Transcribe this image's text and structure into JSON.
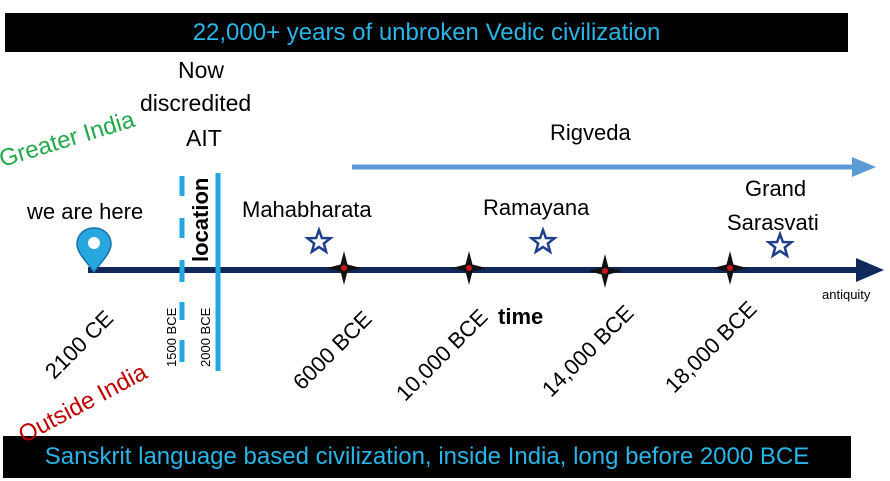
{
  "colors": {
    "banner_bg": "#000000",
    "banner_text": "#2bb4e6",
    "timeline": "#10295a",
    "rigveda_arrow": "#5b9bd5",
    "location_bar": "#26a7e0",
    "greater_india": "#22a84a",
    "outside_india": "#c00000",
    "star_outline": "#1f3f8a",
    "marker": "#c8141e"
  },
  "icons": {
    "location_pin": "map-pin-icon",
    "event_star": "star-outline-icon",
    "era_marker": "four-point-star-icon"
  },
  "header": {
    "banner": "22,000+ years of unbroken Vedic civilization"
  },
  "footer": {
    "banner": "Sanskrit language based civilization, inside India, long before 2000 BCE"
  },
  "ait": {
    "line1": "Now",
    "line2": "discredited",
    "line3": "AIT",
    "location": "location"
  },
  "regions": {
    "greater_india": "Greater India",
    "outside_india": "Outside India"
  },
  "labels": {
    "we_are_here": "we are here",
    "rigveda": "Rigveda",
    "mahabharata": "Mahabharata",
    "ramayana": "Ramayana",
    "grand_1": "Grand",
    "grand_2": "Sarasvati",
    "antiquity": "antiquity",
    "time": "time"
  },
  "dates": {
    "ce2100": "2100 CE",
    "bce1500": "1500 BCE",
    "bce2000": "2000 BCE",
    "bce6000": "6000 BCE",
    "bce10000": "10,000 BCE",
    "bce14000": "14,000 BCE",
    "bce18000": "18,000 BCE"
  }
}
